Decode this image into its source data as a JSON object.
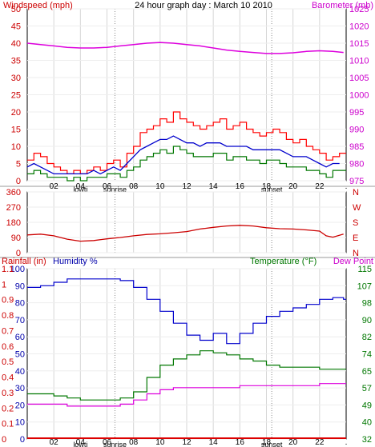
{
  "header": {
    "title": "24 hour graph day : March 10 2010",
    "left_label": "Windspeed (mph)",
    "right_label": "Barometer (mb)"
  },
  "x_ticks": [
    "02",
    "04",
    "06",
    "08",
    "10",
    "12",
    "14",
    "16",
    "18",
    "20",
    "22",
    "."
  ],
  "x_ticks_bottom": [
    "02",
    "04",
    "06",
    "08",
    "10",
    "12",
    "14",
    "16",
    "18",
    "20",
    "22",
    "."
  ],
  "markers": {
    "lowtide": "lowti",
    "sunrise": "sunrise",
    "sunset": "sunset"
  },
  "chart_data": [
    {
      "type": "line",
      "name": "wind-barometer",
      "x_range": [
        0,
        24
      ],
      "y_left_ticks": [
        "0",
        "5",
        "10",
        "15",
        "20",
        "25",
        "30",
        "35",
        "40",
        "45",
        "50"
      ],
      "y_right_ticks": [
        "975",
        "980",
        "985",
        "990",
        "995",
        "1000",
        "1005",
        "1010",
        "1015",
        "1020",
        "1025"
      ],
      "ylim_left": [
        0,
        50
      ],
      "ylim_right": [
        975,
        1025
      ],
      "series": [
        {
          "name": "",
          "color": "#ff0000",
          "axis": "left",
          "x": [
            0,
            0.5,
            1,
            1.5,
            2,
            2.5,
            3,
            3.5,
            4,
            4.5,
            5,
            5.5,
            6,
            6.5,
            7,
            7.5,
            8,
            8.5,
            9,
            9.5,
            10,
            10.5,
            11,
            11.5,
            12,
            12.5,
            13,
            13.5,
            14,
            14.5,
            15,
            15.5,
            16,
            16.5,
            17,
            17.5,
            18,
            18.5,
            19,
            19.5,
            20,
            20.5,
            21,
            21.5,
            22,
            22.5,
            23,
            23.5
          ],
          "values": [
            6,
            8,
            7,
            5,
            4,
            3,
            2,
            3,
            2,
            3,
            4,
            3,
            5,
            6,
            4,
            8,
            10,
            14,
            15,
            16,
            18,
            17,
            20,
            18,
            17,
            16,
            15,
            16,
            17,
            18,
            15,
            16,
            17,
            15,
            14,
            13,
            14,
            15,
            14,
            12,
            11,
            12,
            10,
            9,
            8,
            6,
            7,
            8
          ]
        },
        {
          "name": "",
          "color": "#0000cc",
          "axis": "left",
          "x": [
            0,
            0.5,
            1,
            1.5,
            2,
            2.5,
            3,
            3.5,
            4,
            4.5,
            5,
            5.5,
            6,
            6.5,
            7,
            7.5,
            8,
            8.5,
            9,
            9.5,
            10,
            10.5,
            11,
            11.5,
            12,
            12.5,
            13,
            13.5,
            14,
            14.5,
            15,
            15.5,
            16,
            16.5,
            17,
            17.5,
            18,
            18.5,
            19,
            19.5,
            20,
            20.5,
            21,
            21.5,
            22,
            22.5,
            23,
            23.5
          ],
          "values": [
            4,
            5,
            4,
            3,
            2,
            2,
            2,
            2,
            2,
            2,
            3,
            2,
            3,
            4,
            3,
            5,
            7,
            9,
            10,
            11,
            12,
            12,
            13,
            12,
            11,
            11,
            10,
            11,
            11,
            11,
            10,
            10,
            10,
            10,
            9,
            9,
            9,
            9,
            9,
            8,
            7,
            7,
            7,
            6,
            5,
            4,
            5,
            5
          ]
        },
        {
          "name": "",
          "color": "#007700",
          "axis": "left",
          "x": [
            0,
            0.5,
            1,
            1.5,
            2,
            2.5,
            3,
            3.5,
            4,
            4.5,
            5,
            5.5,
            6,
            6.5,
            7,
            7.5,
            8,
            8.5,
            9,
            9.5,
            10,
            10.5,
            11,
            11.5,
            12,
            12.5,
            13,
            13.5,
            14,
            14.5,
            15,
            15.5,
            16,
            16.5,
            17,
            17.5,
            18,
            18.5,
            19,
            19.5,
            20,
            20.5,
            21,
            21.5,
            22,
            22.5,
            23,
            23.5
          ],
          "values": [
            2,
            3,
            2,
            1,
            1,
            1,
            0,
            1,
            0,
            1,
            1,
            1,
            2,
            2,
            1,
            3,
            4,
            6,
            7,
            8,
            9,
            8,
            10,
            9,
            8,
            7,
            7,
            7,
            8,
            8,
            6,
            7,
            7,
            6,
            6,
            5,
            6,
            6,
            5,
            4,
            4,
            4,
            3,
            3,
            2,
            1,
            3,
            3
          ]
        },
        {
          "name": "",
          "color": "#dd00dd",
          "axis": "right",
          "x": [
            0,
            1,
            2,
            3,
            4,
            5,
            6,
            7,
            8,
            9,
            10,
            11,
            12,
            13,
            14,
            15,
            16,
            17,
            18,
            19,
            20,
            21,
            22,
            23,
            23.8
          ],
          "values": [
            1015,
            1014.6,
            1014.2,
            1013.8,
            1013.6,
            1013.6,
            1013.8,
            1014.2,
            1014.6,
            1015,
            1015.2,
            1015,
            1014.6,
            1014.2,
            1013.6,
            1013,
            1012.6,
            1012.3,
            1012,
            1012,
            1012.2,
            1012.6,
            1012.8,
            1012.6,
            1012.3
          ]
        }
      ]
    },
    {
      "type": "line",
      "name": "wind-direction",
      "x_range": [
        0,
        24
      ],
      "y_left_ticks": [
        "0",
        "90",
        "180",
        "270",
        "360"
      ],
      "y_right_ticks": [
        "N",
        "E",
        "S",
        "W",
        "N"
      ],
      "ylim_left": [
        0,
        360
      ],
      "series": [
        {
          "name": "",
          "color": "#cc0000",
          "axis": "left",
          "x": [
            0,
            1,
            2,
            3,
            4,
            5,
            6,
            7,
            8,
            9,
            10,
            11,
            12,
            13,
            14,
            15,
            16,
            17,
            18,
            19,
            20,
            21,
            22,
            22.5,
            23,
            23.8
          ],
          "values": [
            105,
            110,
            100,
            80,
            68,
            72,
            82,
            90,
            100,
            108,
            112,
            118,
            125,
            140,
            150,
            158,
            162,
            158,
            148,
            142,
            140,
            135,
            128,
            100,
            92,
            110
          ]
        }
      ]
    },
    {
      "type": "line",
      "name": "rain-humidity-temperature",
      "x_range": [
        0,
        24
      ],
      "y_rain_ticks": [
        "0",
        "0.1",
        "0.2",
        "0.3",
        "0.4",
        "0.5",
        "0.6",
        "0.7",
        "0.8",
        "0.9",
        "1",
        "1.1"
      ],
      "y_humidity_ticks": [
        "0",
        "10",
        "20",
        "30",
        "40",
        "50",
        "60",
        "70",
        "80",
        "90",
        "100"
      ],
      "y_temp_ticks": [
        "32",
        "40",
        "49",
        "57",
        "65",
        "74",
        "82",
        "90",
        "98",
        "107",
        "115"
      ],
      "rain_label": "Rainfall (in)",
      "humidity_label": "Humidity %",
      "temp_label": "Temperature (°F)",
      "dewpoint_label": "Dew Point",
      "ylim_humidity": [
        0,
        100
      ],
      "ylim_temp": [
        32,
        115
      ],
      "series": [
        {
          "name": "Rainfall (in)",
          "color": "#dd0000",
          "axis": "rain",
          "x": [
            0,
            24
          ],
          "values": [
            0,
            0
          ]
        },
        {
          "name": "Humidity %",
          "color": "#0000cc",
          "axis": "humidity",
          "x": [
            0,
            1,
            2,
            3,
            4,
            5,
            6,
            7,
            8,
            9,
            10,
            11,
            12,
            13,
            14,
            15,
            16,
            17,
            18,
            19,
            20,
            21,
            22,
            23,
            23.8
          ],
          "values": [
            89,
            90,
            92,
            94,
            94,
            94,
            94,
            93,
            89,
            82,
            75,
            68,
            61,
            58,
            62,
            56,
            62,
            68,
            72,
            75,
            77,
            79,
            82,
            83,
            82
          ]
        },
        {
          "name": "Temperature (°F)",
          "color": "#007700",
          "axis": "temp",
          "x": [
            0,
            1,
            2,
            3,
            4,
            5,
            6,
            7,
            8,
            9,
            10,
            11,
            12,
            13,
            14,
            15,
            16,
            17,
            18,
            19,
            20,
            21,
            22,
            23,
            23.8
          ],
          "values": [
            54,
            54,
            53,
            52,
            51,
            51,
            51,
            52,
            55,
            62,
            68,
            71,
            73,
            75,
            74,
            73,
            71,
            70,
            68,
            67,
            67,
            67,
            66,
            66,
            66
          ]
        },
        {
          "name": "Dew Point",
          "color": "#dd00dd",
          "axis": "temp",
          "x": [
            0,
            1,
            2,
            3,
            4,
            5,
            6,
            7,
            8,
            9,
            10,
            11,
            12,
            13,
            14,
            15,
            16,
            17,
            18,
            19,
            20,
            21,
            22,
            23,
            23.8
          ],
          "values": [
            49,
            49,
            49,
            48,
            48,
            48,
            48,
            49,
            51,
            54,
            56,
            57,
            57,
            57,
            57,
            57,
            58,
            58,
            58,
            58,
            58,
            58,
            59,
            59,
            59
          ]
        }
      ]
    }
  ]
}
